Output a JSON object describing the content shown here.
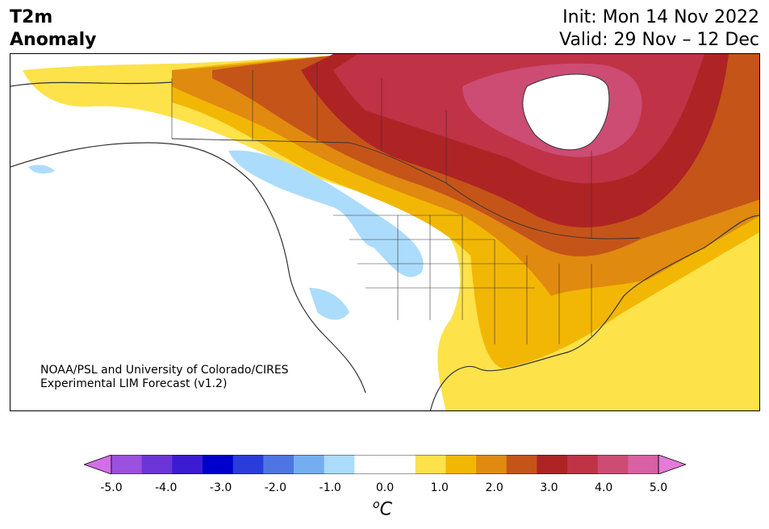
{
  "header": {
    "title_line1": "T2m",
    "title_line2": "Anomaly",
    "init_text": "Init: Mon 14 Nov 2022",
    "valid_text": "Valid: 29 Nov – 12 Dec"
  },
  "credit": {
    "line1": "NOAA/PSL and University of Colorado/CIRES",
    "line2": "Experimental LIM Forecast (v1.2)"
  },
  "colorbar": {
    "ticks": [
      "-5.0",
      "-4.0",
      "-3.0",
      "-2.0",
      "-1.0",
      "0.0",
      "1.0",
      "2.0",
      "3.0",
      "4.0",
      "5.0"
    ],
    "unit_base": "C",
    "unit_sup": "o",
    "colors": [
      "#d36ee7",
      "#9b50e0",
      "#6c35d8",
      "#3c1cd3",
      "#0000cc",
      "#2a3ddb",
      "#4f75e5",
      "#75aef0",
      "#acdcfb",
      "#ffffff",
      "#ffffff",
      "#fde24a",
      "#f2b705",
      "#e08a10",
      "#c55419",
      "#ae2424",
      "#c03245",
      "#cc4c74",
      "#d960a2",
      "#e57ad8"
    ]
  }
}
